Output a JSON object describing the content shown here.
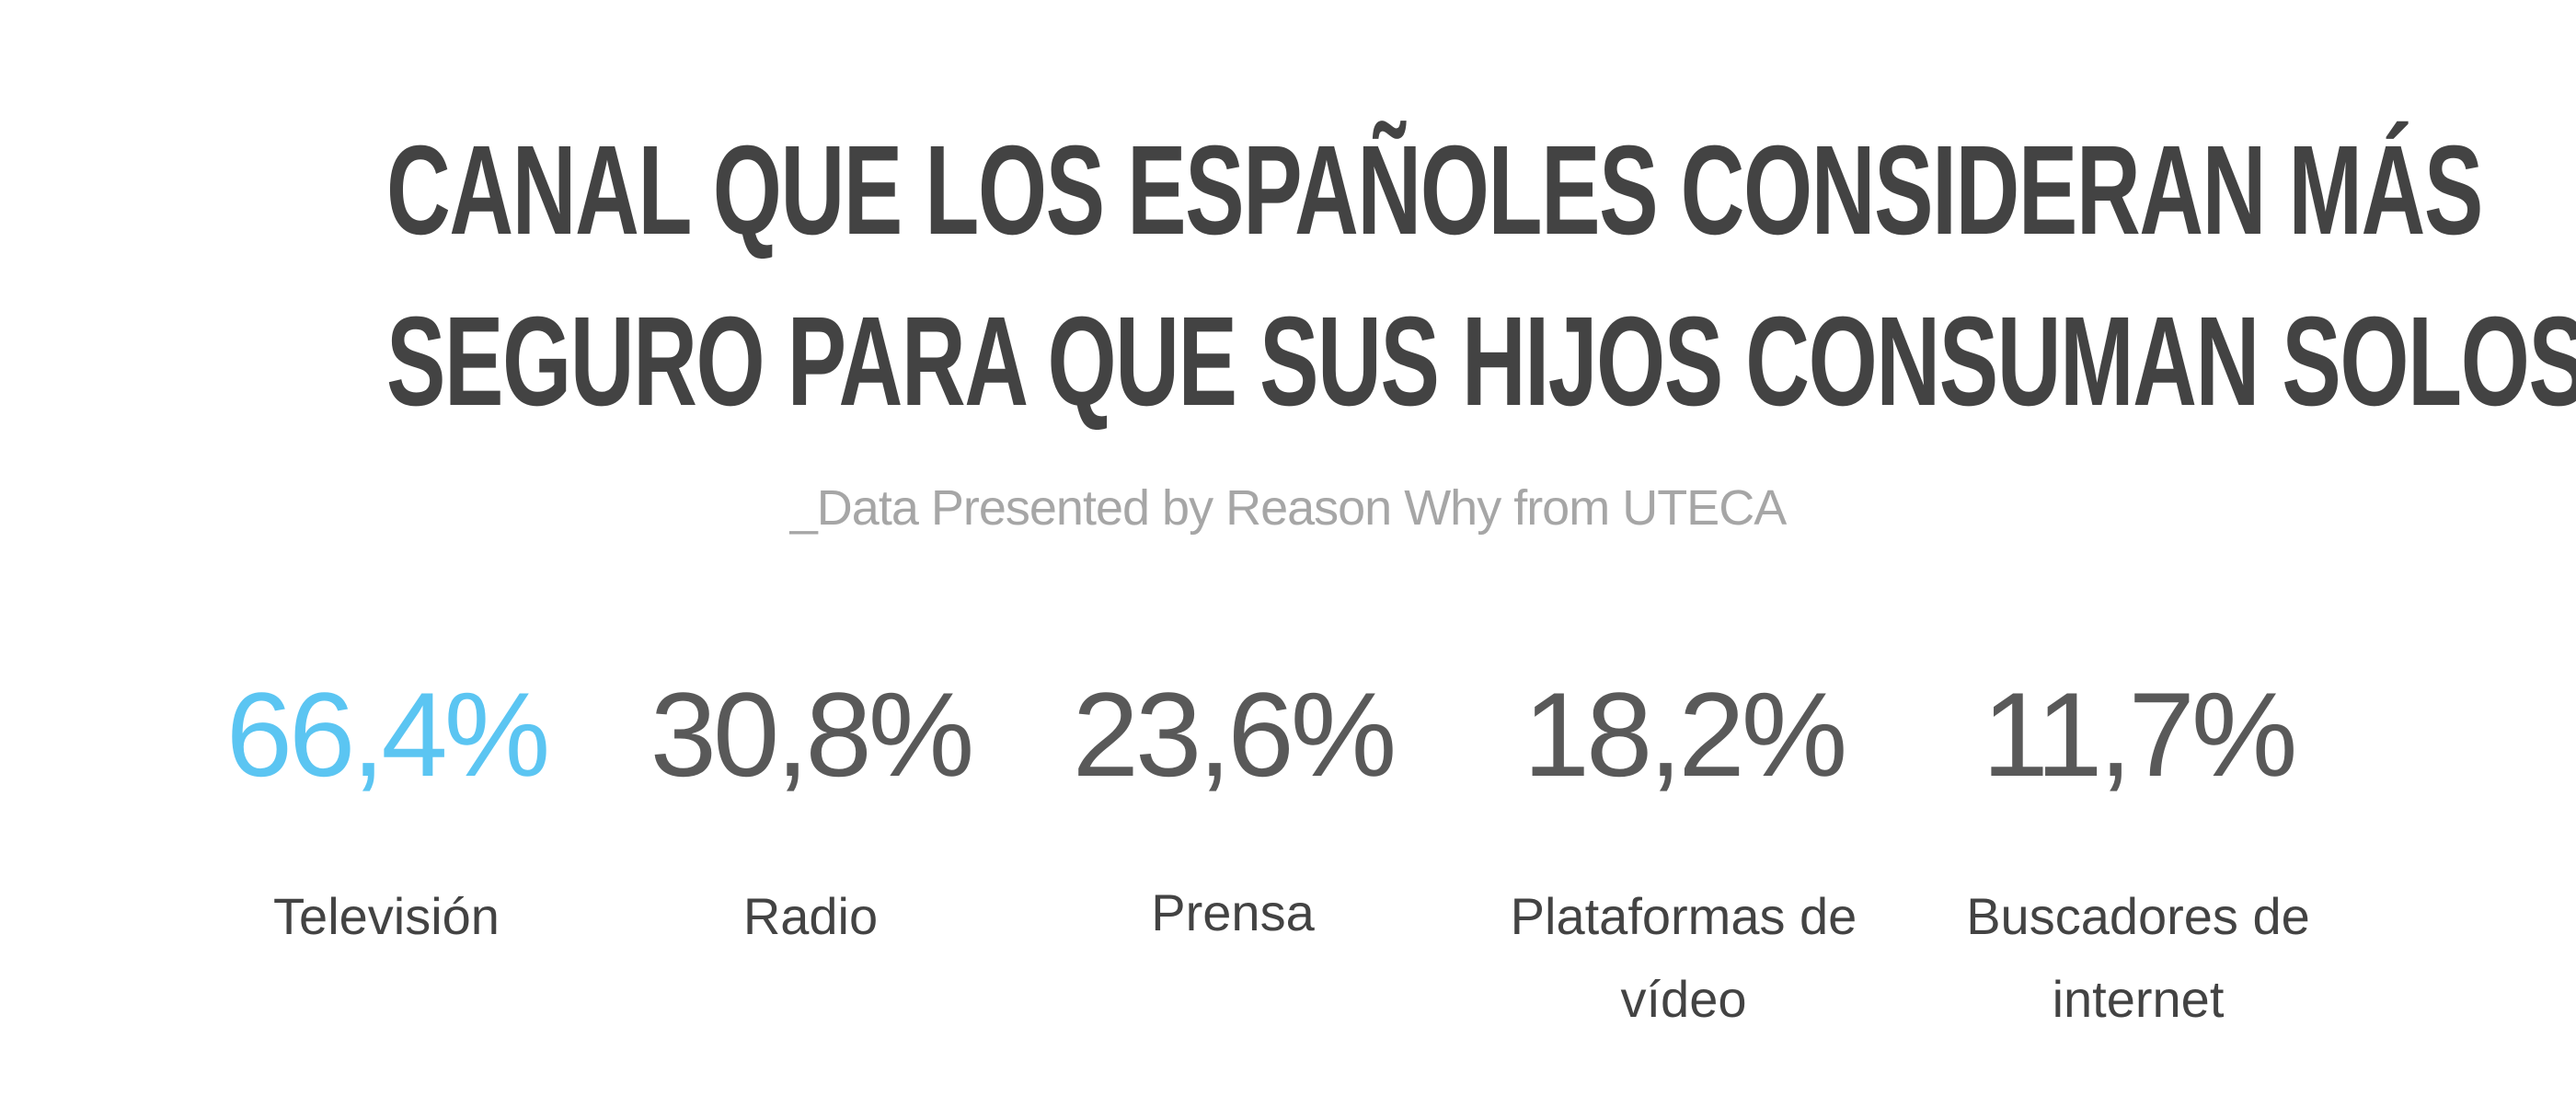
{
  "header": {
    "title_line_1": "CANAL QUE LOS ESPAÑOLES CONSIDERAN MÁS",
    "title_line_2": "SEGURO PARA QUE SUS HIJOS CONSUMAN SOLOS",
    "subtitle": "_Data Presented by Reason Why from UTECA"
  },
  "stats": [
    {
      "value_text": "66,4%",
      "label": "Televisión"
    },
    {
      "value_text": "30,8%",
      "label": "Radio"
    },
    {
      "value_text": "23,6%",
      "label": "Prensa"
    },
    {
      "value_text": "18,2%",
      "label": "Plataformas de vídeo"
    },
    {
      "value_text": "11,7%",
      "label": "Buscadores de internet"
    }
  ],
  "colors": {
    "highlight": "#5bc5f2",
    "value_text": "#595959",
    "title_text": "#434343",
    "subtitle_text": "#a6a6a6"
  },
  "chart_data": {
    "type": "table",
    "title": "CANAL QUE LOS ESPAÑOLES CONSIDERAN MÁS SEGURO PARA QUE SUS HIJOS CONSUMAN SOLOS",
    "subtitle": "_Data Presented by Reason Why from UTECA",
    "categories": [
      "Televisión",
      "Radio",
      "Prensa",
      "Plataformas de vídeo",
      "Buscadores de internet"
    ],
    "values": [
      66.4,
      30.8,
      23.6,
      18.2,
      11.7
    ],
    "unit": "%",
    "highlighted_category": "Televisión"
  }
}
